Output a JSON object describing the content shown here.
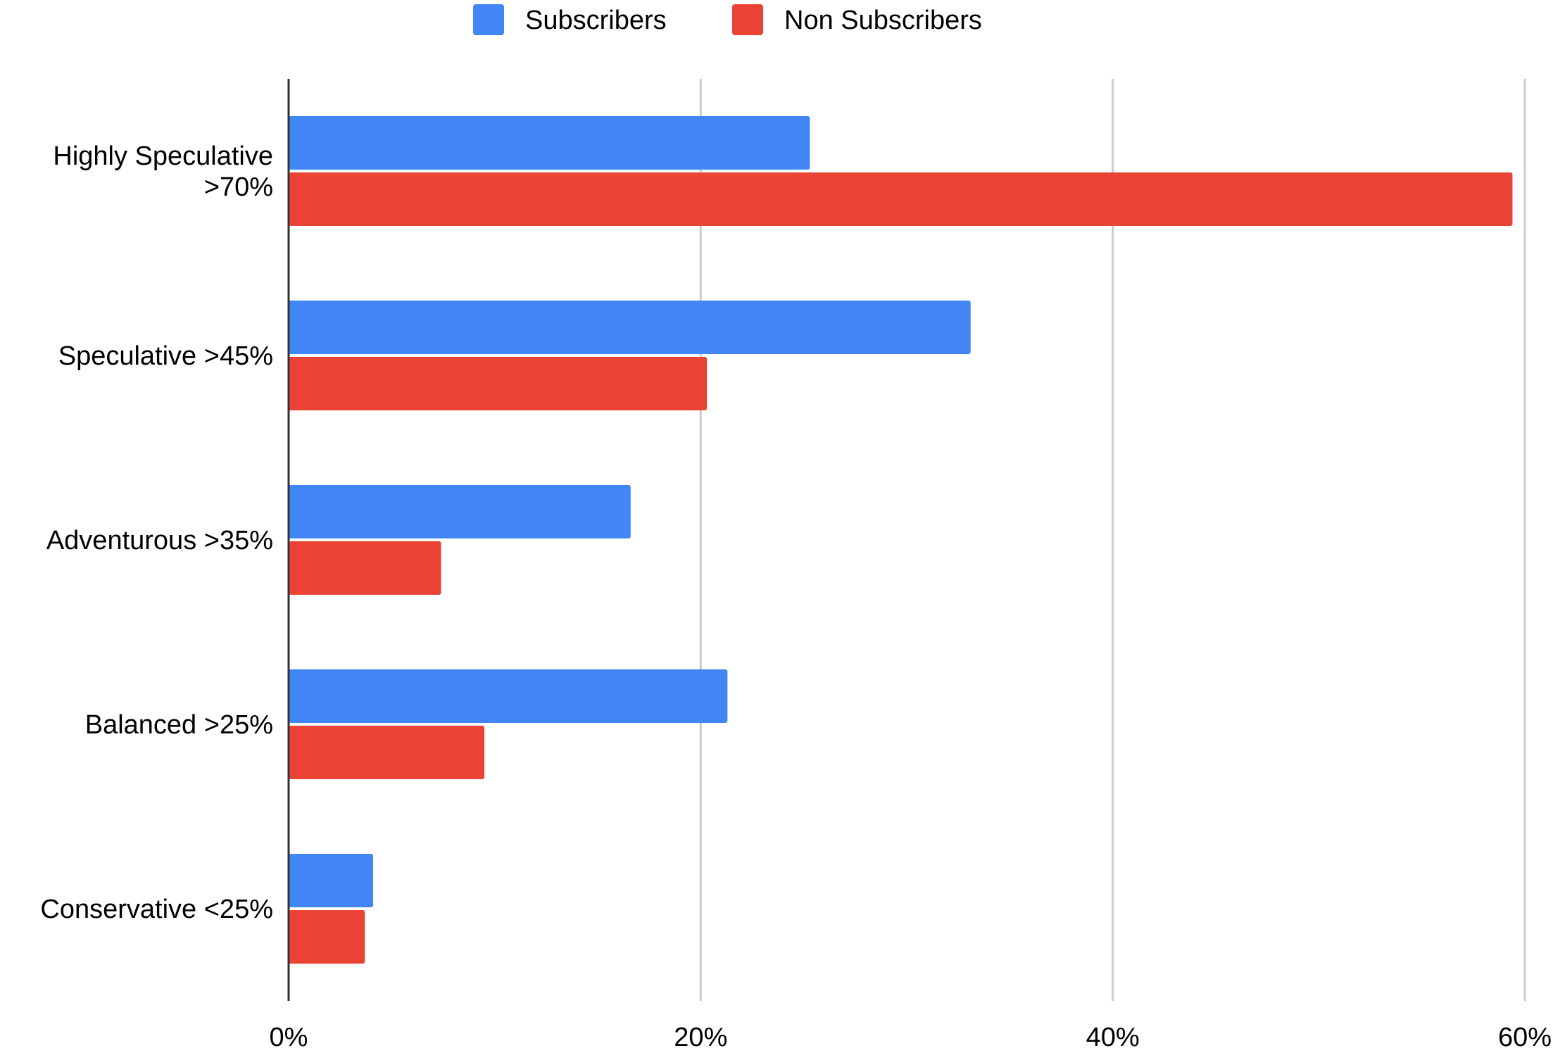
{
  "chart_data": {
    "type": "bar",
    "orientation": "horizontal",
    "title": "",
    "xlabel": "",
    "ylabel": "",
    "categories": [
      [
        "Highly Speculative",
        ">70%"
      ],
      [
        "Speculative >45%"
      ],
      [
        "Adventurous >35%"
      ],
      [
        "Balanced >25%"
      ],
      [
        "Conservative <25%"
      ]
    ],
    "series": [
      {
        "name": "Subscribers",
        "color": "#4285f4",
        "values": [
          25.3,
          33.1,
          16.6,
          21.3,
          4.1
        ]
      },
      {
        "name": "Non Subscribers",
        "color": "#ea4335",
        "values": [
          59.4,
          20.3,
          7.4,
          9.5,
          3.7
        ]
      }
    ],
    "xlim": [
      0,
      60
    ],
    "ticks": [
      0,
      20,
      40,
      60
    ],
    "tick_labels": [
      "0%",
      "20%",
      "40%",
      "60%"
    ],
    "grid": true,
    "legend_position": "top-center"
  }
}
